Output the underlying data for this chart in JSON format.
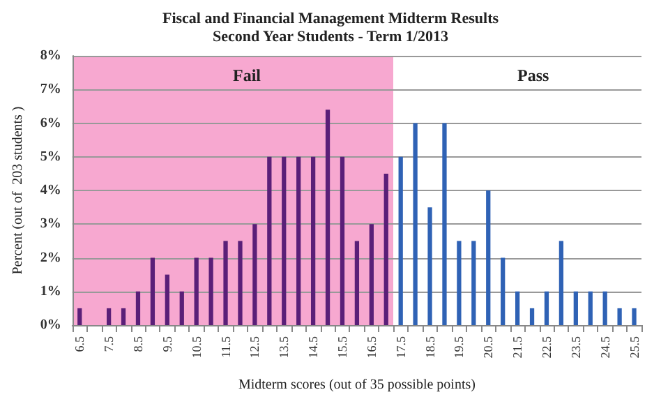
{
  "chart_data": {
    "type": "bar",
    "title": "Fiscal and Financial Management Midterm Results\nSecond Year Students - Term 1/2013",
    "xlabel": "Midterm scores (out of 35 possible points)",
    "ylabel": "Percent (out of  203 students )",
    "categories": [
      "6.5",
      null,
      "7.5",
      null,
      "8.5",
      null,
      "9.5",
      null,
      "10.5",
      null,
      "11.5",
      null,
      "12.5",
      null,
      "13.5",
      null,
      "14.5",
      null,
      "15.5",
      null,
      "16.5",
      null,
      "17.5",
      null,
      "18.5",
      null,
      "19.5",
      null,
      "20.5",
      null,
      "21.5",
      null,
      "22.5",
      null,
      "23.5",
      null,
      "24.5",
      null,
      "25.5"
    ],
    "values": [
      0.5,
      0,
      0.5,
      0.5,
      1,
      2,
      1.5,
      1,
      2,
      2,
      2.5,
      2.5,
      3,
      5,
      5,
      5,
      5,
      6.4,
      5,
      2.5,
      3,
      4.5,
      5,
      6,
      3.5,
      6,
      2.5,
      2.5,
      4,
      2,
      1,
      0.5,
      1,
      2.5,
      1,
      1,
      1,
      0.5,
      0.5
    ],
    "colors": [
      "#5a1f78",
      "#5a1f78",
      "#5a1f78",
      "#5a1f78",
      "#5a1f78",
      "#5a1f78",
      "#5a1f78",
      "#5a1f78",
      "#5a1f78",
      "#5a1f78",
      "#5a1f78",
      "#5a1f78",
      "#5a1f78",
      "#5a1f78",
      "#5a1f78",
      "#5a1f78",
      "#5a1f78",
      "#5a1f78",
      "#5a1f78",
      "#5a1f78",
      "#5a1f78",
      "#5a1f78",
      "#2f62b5",
      "#2f62b5",
      "#2f62b5",
      "#2f62b5",
      "#2f62b5",
      "#2f62b5",
      "#2f62b5",
      "#2f62b5",
      "#2f62b5",
      "#2f62b5",
      "#2f62b5",
      "#2f62b5",
      "#2f62b5",
      "#2f62b5",
      "#2f62b5",
      "#2f62b5",
      "#2f62b5"
    ],
    "annotations": [
      "Fail",
      "Pass"
    ],
    "ylim": [
      0,
      8
    ],
    "yticks": [
      {
        "value": 0,
        "label": "0%"
      },
      {
        "value": 1,
        "label": "1%"
      },
      {
        "value": 2,
        "label": "2%"
      },
      {
        "value": 3,
        "label": "3%"
      },
      {
        "value": 4,
        "label": "4%"
      },
      {
        "value": 5,
        "label": "5%"
      },
      {
        "value": 6,
        "label": "6%"
      },
      {
        "value": 7,
        "label": "7%"
      },
      {
        "value": 8,
        "label": "8%"
      }
    ],
    "grid": "y"
  }
}
